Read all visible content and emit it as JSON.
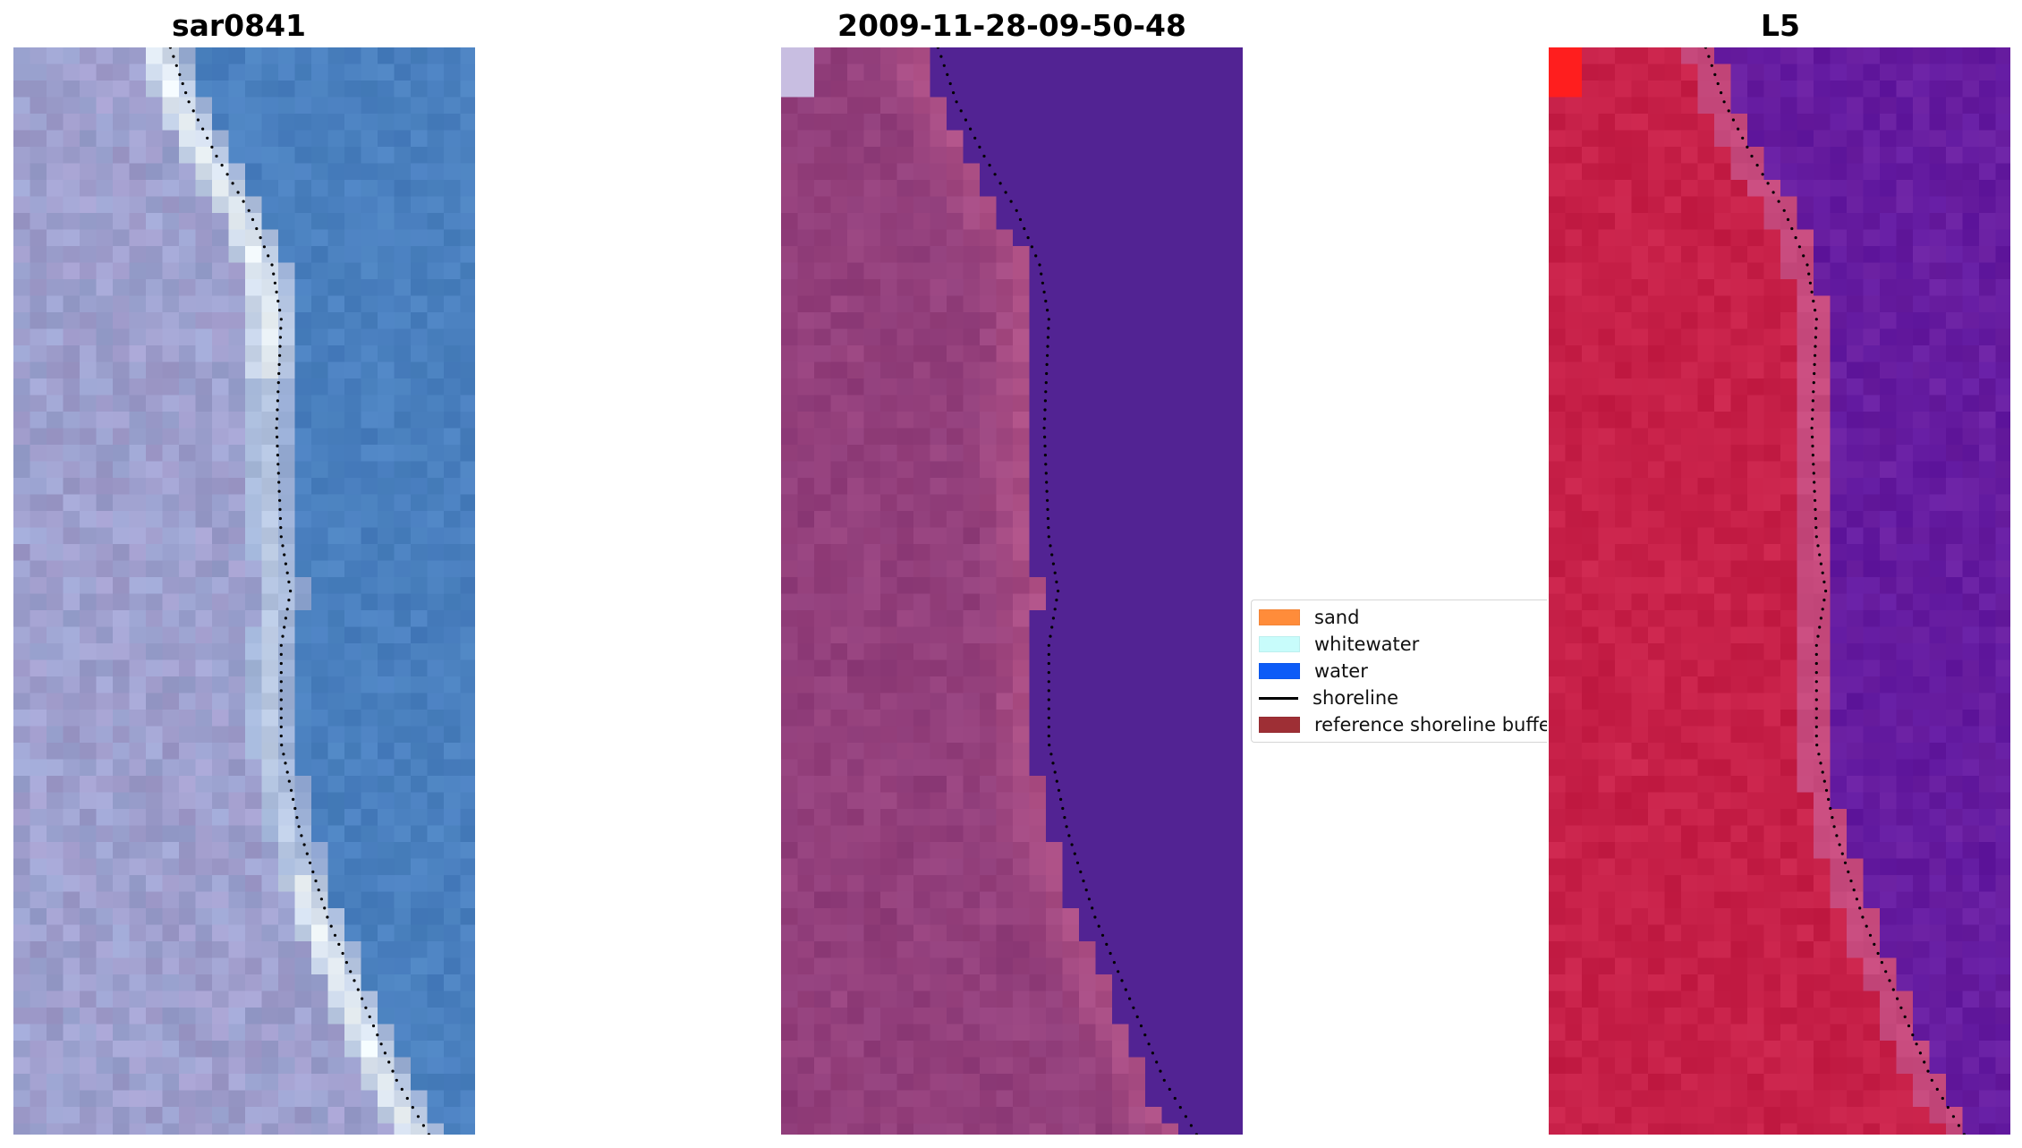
{
  "panels": [
    {
      "title": "sar0841"
    },
    {
      "title": "2009-11-28-09-50-48"
    },
    {
      "title": "L5"
    }
  ],
  "legend": {
    "items": [
      {
        "label": "sand",
        "color": "#ff8c3a"
      },
      {
        "label": "whitewater",
        "color": "#c8fcfb"
      },
      {
        "label": "water",
        "color": "#0d5cf7"
      },
      {
        "label": "shoreline",
        "color": "#000000"
      },
      {
        "label": "reference shoreline buffer",
        "color": "#9e2f35"
      }
    ]
  },
  "colors": {
    "rgb_land": "#9aa3d0",
    "rgb_water": "#4b82bf",
    "rgb_whitewater": "#f0f6f8",
    "classified_land": "#8f3d7a",
    "classified_water": "#522393",
    "ndwi_land": "#c51e46",
    "ndwi_water": "#6a1fa0"
  }
}
